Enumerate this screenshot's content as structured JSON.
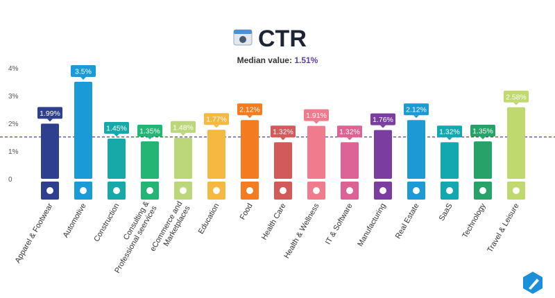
{
  "chart_data": {
    "type": "bar",
    "title": "CTR",
    "median_text": "Median value:",
    "median": {
      "value": 1.51,
      "label": "1.51%"
    },
    "categories": [
      "Apparel & Footwear",
      "Automotive",
      "Construction",
      [
        "Consulting &",
        "Professional seervices"
      ],
      [
        "eCommerce and",
        "Marketplaces"
      ],
      "Education",
      "Food",
      "Health Care",
      "Health & Wellness",
      "IT & Software",
      "Manufacturing",
      "Real Estate",
      "SaaS",
      "Technology",
      "Travel & Leisure"
    ],
    "values": [
      1.99,
      3.5,
      1.45,
      1.35,
      1.48,
      1.77,
      2.12,
      1.32,
      1.91,
      1.32,
      1.76,
      2.12,
      1.32,
      1.35,
      2.58
    ],
    "value_labels": [
      "1.99%",
      "3.5%",
      "1.45%",
      "1.35%",
      "1.48%",
      "1.77%",
      "2.12%",
      "1.32%",
      "1.91%",
      "1.32%",
      "1.76%",
      "2.12%",
      "1.32%",
      "1.35%",
      "2.58%"
    ],
    "colors": [
      "#2e3f8f",
      "#1a9ad6",
      "#17a9a7",
      "#22b573",
      "#bcd77a",
      "#f5b942",
      "#f47b20",
      "#d35a5a",
      "#ef7b8c",
      "#dc6394",
      "#7a3ea0",
      "#1b9ad6",
      "#13a8b0",
      "#27a36a",
      "#bfd96f"
    ],
    "ylim": [
      0,
      4
    ],
    "yticks": [
      0,
      {
        "value": 1,
        "label": "1%"
      },
      {
        "value": 2,
        "label": "2%"
      },
      {
        "value": 3,
        "label": "3%"
      },
      {
        "value": 4,
        "label": "4%"
      }
    ],
    "median_color": "#5b3fa6"
  }
}
